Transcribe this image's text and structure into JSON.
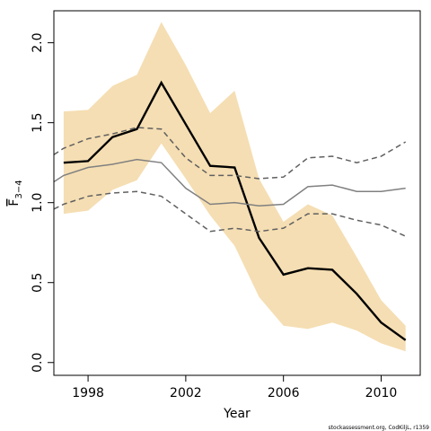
{
  "chart_data": {
    "type": "line",
    "xlabel": "Year",
    "ylabel": "F",
    "ylabel_sub": "3−4",
    "xlim": [
      1996.6,
      2011.6
    ],
    "ylim": [
      -0.08,
      2.2
    ],
    "x_ticks": [
      1998,
      2002,
      2006,
      2010
    ],
    "y_ticks": [
      0.0,
      0.5,
      1.0,
      1.5,
      2.0
    ],
    "y_tick_labels": [
      "0.0",
      "0.5",
      "1.0",
      "1.5",
      "2.0"
    ],
    "grid": false,
    "x": [
      1997,
      1998,
      1999,
      2000,
      2001,
      2002,
      2003,
      2004,
      2005,
      2006,
      2007,
      2008,
      2009,
      2010,
      2011
    ],
    "series": [
      {
        "style": "band",
        "color": "#f5deb3",
        "lower": [
          0.93,
          0.95,
          1.08,
          1.14,
          1.37,
          1.15,
          0.92,
          0.73,
          0.41,
          0.23,
          0.21,
          0.25,
          0.2,
          0.12,
          0.07
        ],
        "upper": [
          1.57,
          1.58,
          1.73,
          1.8,
          2.13,
          1.86,
          1.56,
          1.7,
          1.15,
          0.88,
          0.99,
          0.92,
          0.66,
          0.39,
          0.23
        ]
      },
      {
        "style": "solid-thick",
        "color": "#000000",
        "values": [
          1.25,
          1.26,
          1.41,
          1.46,
          1.75,
          1.49,
          1.23,
          1.22,
          0.78,
          0.55,
          0.59,
          0.58,
          0.43,
          0.25,
          0.14
        ]
      },
      {
        "style": "solid-thin",
        "color": "#808080",
        "x": [
          1996.6,
          1997,
          1998,
          1999,
          2000,
          2001,
          2002,
          2003,
          2004,
          2005,
          2006,
          2007,
          2008,
          2009,
          2010,
          2011
        ],
        "values": [
          1.13,
          1.17,
          1.22,
          1.24,
          1.27,
          1.25,
          1.09,
          0.99,
          1.0,
          0.98,
          0.99,
          1.1,
          1.11,
          1.07,
          1.07,
          1.09
        ]
      },
      {
        "style": "dashed",
        "color": "#606060",
        "x": [
          1996.6,
          1997,
          1998,
          1999,
          2000,
          2001,
          2002,
          2003,
          2004,
          2005,
          2006,
          2007,
          2008,
          2009,
          2010,
          2011
        ],
        "values": [
          1.3,
          1.34,
          1.4,
          1.43,
          1.47,
          1.46,
          1.28,
          1.17,
          1.17,
          1.15,
          1.16,
          1.28,
          1.29,
          1.25,
          1.29,
          1.38
        ]
      },
      {
        "style": "dashed",
        "color": "#606060",
        "x": [
          1996.6,
          1997,
          1998,
          1999,
          2000,
          2001,
          2002,
          2003,
          2004,
          2005,
          2006,
          2007,
          2008,
          2009,
          2010,
          2011
        ],
        "values": [
          0.96,
          0.99,
          1.04,
          1.06,
          1.07,
          1.04,
          0.93,
          0.82,
          0.84,
          0.82,
          0.84,
          0.93,
          0.93,
          0.89,
          0.86,
          0.79
        ]
      }
    ]
  },
  "source_note": "stockassessment.org, CodKiljL, r1359"
}
